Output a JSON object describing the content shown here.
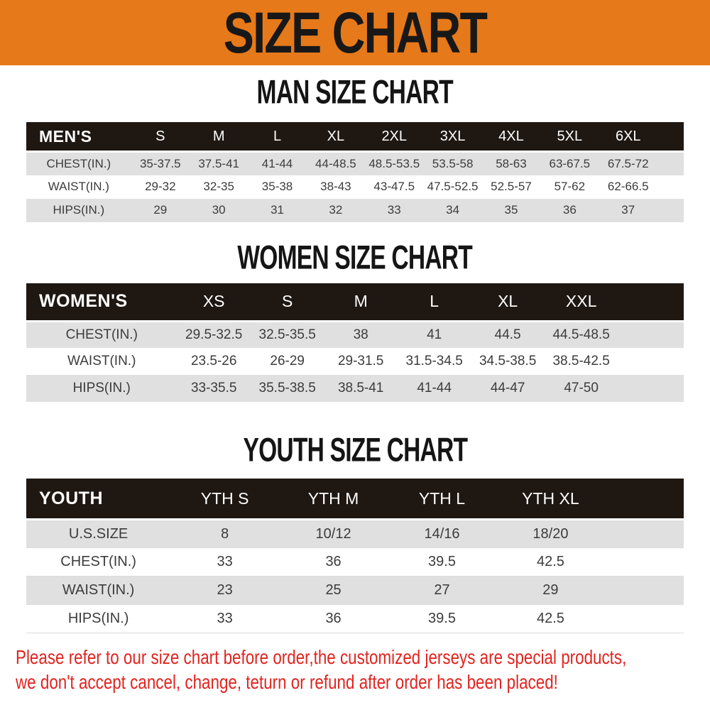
{
  "banner": {
    "title": "SIZE CHART"
  },
  "sections": [
    {
      "id": "men",
      "heading": "MAN SIZE CHART",
      "table": {
        "header_label": "MEN'S",
        "columns": [
          "S",
          "M",
          "L",
          "XL",
          "2XL",
          "3XL",
          "4XL",
          "5XL",
          "6XL"
        ],
        "rows": [
          {
            "label": "CHEST(IN.)",
            "values": [
              "35-37.5",
              "37.5-41",
              "41-44",
              "44-48.5",
              "48.5-53.5",
              "53.5-58",
              "58-63",
              "63-67.5",
              "67.5-72"
            ]
          },
          {
            "label": "WAIST(IN.)",
            "values": [
              "29-32",
              "32-35",
              "35-38",
              "38-43",
              "43-47.5",
              "47.5-52.5",
              "52.5-57",
              "57-62",
              "62-66.5"
            ]
          },
          {
            "label": "HIPS(IN.)",
            "values": [
              "29",
              "30",
              "31",
              "32",
              "33",
              "34",
              "35",
              "36",
              "37"
            ]
          }
        ]
      }
    },
    {
      "id": "women",
      "heading": "WOMEN SIZE CHART",
      "table": {
        "header_label": "WOMEN'S",
        "columns": [
          "XS",
          "S",
          "M",
          "L",
          "XL",
          "XXL"
        ],
        "rows": [
          {
            "label": "CHEST(IN.)",
            "values": [
              "29.5-32.5",
              "32.5-35.5",
              "38",
              "41",
              "44.5",
              "44.5-48.5"
            ]
          },
          {
            "label": "WAIST(IN.)",
            "values": [
              "23.5-26",
              "26-29",
              "29-31.5",
              "31.5-34.5",
              "34.5-38.5",
              "38.5-42.5"
            ]
          },
          {
            "label": "HIPS(IN.)",
            "values": [
              "33-35.5",
              "35.5-38.5",
              "38.5-41",
              "41-44",
              "44-47",
              "47-50"
            ]
          }
        ]
      }
    },
    {
      "id": "youth",
      "heading": "YOUTH SIZE CHART",
      "table": {
        "header_label": "YOUTH",
        "columns": [
          "YTH S",
          "YTH M",
          "YTH L",
          "YTH XL"
        ],
        "rows": [
          {
            "label": "U.S.SIZE",
            "values": [
              "8",
              "10/12",
              "14/16",
              "18/20"
            ]
          },
          {
            "label": "CHEST(IN.)",
            "values": [
              "33",
              "36",
              "39.5",
              "42.5"
            ]
          },
          {
            "label": "WAIST(IN.)",
            "values": [
              "23",
              "25",
              "27",
              "29"
            ]
          },
          {
            "label": "HIPS(IN.)",
            "values": [
              "33",
              "36",
              "39.5",
              "42.5"
            ]
          }
        ]
      }
    }
  ],
  "footer": {
    "line1": "Please refer to our size chart before order,the customized jerseys are special products,",
    "line2": "we don't accept cancel, change, teturn or refund after order has been placed!"
  },
  "colors": {
    "banner_orange": "#E6791A",
    "header_black": "#1E1712",
    "row_gray": "#E0E0E0",
    "note_red": "#E02420",
    "cell_text": "#3C3C3C"
  }
}
